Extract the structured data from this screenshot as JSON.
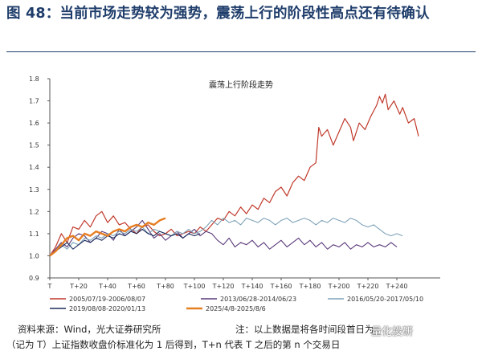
{
  "figure_title": "图 48：当前市场走势较为强势，震荡上行的阶段性高点还有待确认",
  "source_note": "资料来源：Wind，光大证券研究所",
  "footnote_1": "注：以上数据是将各时间段首日为",
  "footnote_2": "（记为 T）上证指数收盘价标准化为 1 后得到，T+n 代表 T 之后的第 n 个交易日",
  "watermark": "量化投研",
  "chart_data": {
    "type": "line",
    "title": "震荡上行阶段走势",
    "xlabel": "",
    "ylabel": "",
    "xlim": [
      0,
      270
    ],
    "ylim": [
      0.9,
      1.8
    ],
    "yticks": [
      "0.9",
      "1.0",
      "1.1",
      "1.2",
      "1.3",
      "1.4",
      "1.5",
      "1.6",
      "1.7",
      "1.8"
    ],
    "xticks": [
      {
        "x": 0,
        "label": "T"
      },
      {
        "x": 20,
        "label": "T+20"
      },
      {
        "x": 40,
        "label": "T+40"
      },
      {
        "x": 60,
        "label": "T+60"
      },
      {
        "x": 80,
        "label": "T+80"
      },
      {
        "x": 100,
        "label": "T+100"
      },
      {
        "x": 120,
        "label": "T+120"
      },
      {
        "x": 140,
        "label": "T+140"
      },
      {
        "x": 160,
        "label": "T+160"
      },
      {
        "x": 180,
        "label": "T+180"
      },
      {
        "x": 200,
        "label": "T+200"
      },
      {
        "x": 220,
        "label": "T+220"
      },
      {
        "x": 240,
        "label": "T+240"
      }
    ],
    "grid": false,
    "legend_position": "bottom",
    "series": [
      {
        "name": "2005/07/19-2006/08/07",
        "color": "#c0392b",
        "width": 1.2,
        "points": [
          [
            0,
            1.0
          ],
          [
            4,
            1.04
          ],
          [
            8,
            1.1
          ],
          [
            12,
            1.06
          ],
          [
            16,
            1.13
          ],
          [
            20,
            1.12
          ],
          [
            24,
            1.16
          ],
          [
            28,
            1.13
          ],
          [
            32,
            1.18
          ],
          [
            36,
            1.2
          ],
          [
            40,
            1.15
          ],
          [
            44,
            1.18
          ],
          [
            48,
            1.14
          ],
          [
            52,
            1.15
          ],
          [
            56,
            1.12
          ],
          [
            60,
            1.1
          ],
          [
            64,
            1.13
          ],
          [
            68,
            1.14
          ],
          [
            72,
            1.11
          ],
          [
            76,
            1.09
          ],
          [
            80,
            1.1
          ],
          [
            84,
            1.12
          ],
          [
            88,
            1.09
          ],
          [
            92,
            1.1
          ],
          [
            96,
            1.11
          ],
          [
            100,
            1.1
          ],
          [
            104,
            1.13
          ],
          [
            108,
            1.11
          ],
          [
            112,
            1.14
          ],
          [
            116,
            1.17
          ],
          [
            120,
            1.16
          ],
          [
            124,
            1.2
          ],
          [
            128,
            1.18
          ],
          [
            132,
            1.22
          ],
          [
            136,
            1.19
          ],
          [
            140,
            1.23
          ],
          [
            144,
            1.21
          ],
          [
            148,
            1.26
          ],
          [
            152,
            1.24
          ],
          [
            156,
            1.29
          ],
          [
            160,
            1.31
          ],
          [
            164,
            1.27
          ],
          [
            168,
            1.33
          ],
          [
            172,
            1.36
          ],
          [
            176,
            1.34
          ],
          [
            180,
            1.4
          ],
          [
            184,
            1.42
          ],
          [
            186,
            1.58
          ],
          [
            188,
            1.54
          ],
          [
            192,
            1.57
          ],
          [
            196,
            1.5
          ],
          [
            200,
            1.56
          ],
          [
            204,
            1.62
          ],
          [
            208,
            1.58
          ],
          [
            210,
            1.52
          ],
          [
            214,
            1.6
          ],
          [
            218,
            1.57
          ],
          [
            222,
            1.63
          ],
          [
            226,
            1.68
          ],
          [
            228,
            1.72
          ],
          [
            230,
            1.69
          ],
          [
            232,
            1.73
          ],
          [
            234,
            1.66
          ],
          [
            238,
            1.7
          ],
          [
            242,
            1.64
          ],
          [
            244,
            1.67
          ],
          [
            248,
            1.6
          ],
          [
            252,
            1.62
          ],
          [
            255,
            1.54
          ]
        ]
      },
      {
        "name": "2013/06/28-2014/06/23",
        "color": "#5b3a7a",
        "width": 1.1,
        "points": [
          [
            0,
            1.0
          ],
          [
            4,
            1.03
          ],
          [
            8,
            1.06
          ],
          [
            12,
            1.04
          ],
          [
            16,
            1.08
          ],
          [
            20,
            1.1
          ],
          [
            24,
            1.09
          ],
          [
            28,
            1.06
          ],
          [
            32,
            1.08
          ],
          [
            36,
            1.11
          ],
          [
            40,
            1.1
          ],
          [
            44,
            1.07
          ],
          [
            48,
            1.12
          ],
          [
            52,
            1.09
          ],
          [
            56,
            1.11
          ],
          [
            60,
            1.13
          ],
          [
            64,
            1.16
          ],
          [
            68,
            1.12
          ],
          [
            72,
            1.08
          ],
          [
            76,
            1.1
          ],
          [
            80,
            1.07
          ],
          [
            84,
            1.09
          ],
          [
            88,
            1.11
          ],
          [
            92,
            1.08
          ],
          [
            96,
            1.1
          ],
          [
            100,
            1.12
          ],
          [
            104,
            1.09
          ],
          [
            108,
            1.11
          ],
          [
            112,
            1.1
          ],
          [
            116,
            1.07
          ],
          [
            120,
            1.05
          ],
          [
            124,
            1.08
          ],
          [
            128,
            1.04
          ],
          [
            132,
            1.06
          ],
          [
            136,
            1.05
          ],
          [
            140,
            1.07
          ],
          [
            144,
            1.04
          ],
          [
            148,
            1.06
          ],
          [
            152,
            1.03
          ],
          [
            156,
            1.05
          ],
          [
            160,
            1.07
          ],
          [
            164,
            1.04
          ],
          [
            168,
            1.06
          ],
          [
            172,
            1.08
          ],
          [
            176,
            1.05
          ],
          [
            180,
            1.07
          ],
          [
            184,
            1.04
          ],
          [
            188,
            1.06
          ],
          [
            192,
            1.03
          ],
          [
            196,
            1.05
          ],
          [
            200,
            1.04
          ],
          [
            204,
            1.06
          ],
          [
            208,
            1.03
          ],
          [
            212,
            1.05
          ],
          [
            216,
            1.04
          ],
          [
            220,
            1.06
          ],
          [
            224,
            1.04
          ],
          [
            228,
            1.05
          ],
          [
            232,
            1.04
          ],
          [
            236,
            1.06
          ],
          [
            240,
            1.04
          ]
        ]
      },
      {
        "name": "2016/05/20-2017/05/10",
        "color": "#7fa3b8",
        "width": 1.1,
        "points": [
          [
            0,
            1.0
          ],
          [
            4,
            1.02
          ],
          [
            8,
            1.05
          ],
          [
            12,
            1.03
          ],
          [
            16,
            1.06
          ],
          [
            20,
            1.05
          ],
          [
            24,
            1.08
          ],
          [
            28,
            1.07
          ],
          [
            32,
            1.09
          ],
          [
            36,
            1.08
          ],
          [
            40,
            1.1
          ],
          [
            44,
            1.09
          ],
          [
            48,
            1.11
          ],
          [
            52,
            1.1
          ],
          [
            56,
            1.12
          ],
          [
            60,
            1.11
          ],
          [
            64,
            1.13
          ],
          [
            68,
            1.1
          ],
          [
            72,
            1.12
          ],
          [
            76,
            1.11
          ],
          [
            80,
            1.1
          ],
          [
            84,
            1.09
          ],
          [
            88,
            1.11
          ],
          [
            92,
            1.1
          ],
          [
            96,
            1.12
          ],
          [
            100,
            1.1
          ],
          [
            104,
            1.11
          ],
          [
            108,
            1.13
          ],
          [
            112,
            1.16
          ],
          [
            116,
            1.14
          ],
          [
            120,
            1.17
          ],
          [
            124,
            1.15
          ],
          [
            128,
            1.16
          ],
          [
            132,
            1.14
          ],
          [
            136,
            1.17
          ],
          [
            140,
            1.16
          ],
          [
            144,
            1.15
          ],
          [
            148,
            1.17
          ],
          [
            152,
            1.16
          ],
          [
            156,
            1.14
          ],
          [
            160,
            1.16
          ],
          [
            164,
            1.17
          ],
          [
            168,
            1.15
          ],
          [
            172,
            1.16
          ],
          [
            176,
            1.17
          ],
          [
            180,
            1.16
          ],
          [
            184,
            1.14
          ],
          [
            188,
            1.16
          ],
          [
            192,
            1.15
          ],
          [
            196,
            1.17
          ],
          [
            200,
            1.16
          ],
          [
            204,
            1.15
          ],
          [
            208,
            1.17
          ],
          [
            212,
            1.16
          ],
          [
            216,
            1.14
          ],
          [
            220,
            1.13
          ],
          [
            224,
            1.14
          ],
          [
            228,
            1.12
          ],
          [
            232,
            1.1
          ],
          [
            236,
            1.09
          ],
          [
            240,
            1.1
          ],
          [
            244,
            1.09
          ]
        ]
      },
      {
        "name": "2019/08/08-2020/01/13",
        "color": "#1c2c5c",
        "width": 1.1,
        "points": [
          [
            0,
            1.0
          ],
          [
            4,
            1.02
          ],
          [
            8,
            1.04
          ],
          [
            12,
            1.06
          ],
          [
            16,
            1.03
          ],
          [
            20,
            1.05
          ],
          [
            24,
            1.07
          ],
          [
            28,
            1.06
          ],
          [
            32,
            1.08
          ],
          [
            36,
            1.07
          ],
          [
            40,
            1.09
          ],
          [
            44,
            1.08
          ],
          [
            48,
            1.1
          ],
          [
            52,
            1.09
          ],
          [
            56,
            1.11
          ],
          [
            60,
            1.1
          ],
          [
            64,
            1.12
          ],
          [
            68,
            1.1
          ],
          [
            72,
            1.09
          ],
          [
            76,
            1.11
          ],
          [
            80,
            1.1
          ],
          [
            84,
            1.09
          ],
          [
            88,
            1.1
          ],
          [
            92,
            1.08
          ],
          [
            96,
            1.1
          ],
          [
            100,
            1.09
          ],
          [
            104,
            1.1
          ]
        ]
      },
      {
        "name": "2025/4/8-2025/8/6",
        "color": "#e67e22",
        "width": 2.4,
        "points": [
          [
            0,
            1.0
          ],
          [
            4,
            1.02
          ],
          [
            8,
            1.05
          ],
          [
            12,
            1.08
          ],
          [
            16,
            1.09
          ],
          [
            20,
            1.07
          ],
          [
            24,
            1.1
          ],
          [
            28,
            1.09
          ],
          [
            32,
            1.11
          ],
          [
            36,
            1.1
          ],
          [
            40,
            1.09
          ],
          [
            44,
            1.11
          ],
          [
            48,
            1.12
          ],
          [
            52,
            1.11
          ],
          [
            56,
            1.13
          ],
          [
            60,
            1.14
          ],
          [
            64,
            1.13
          ],
          [
            68,
            1.15
          ],
          [
            72,
            1.14
          ],
          [
            76,
            1.16
          ],
          [
            80,
            1.17
          ]
        ]
      }
    ]
  }
}
